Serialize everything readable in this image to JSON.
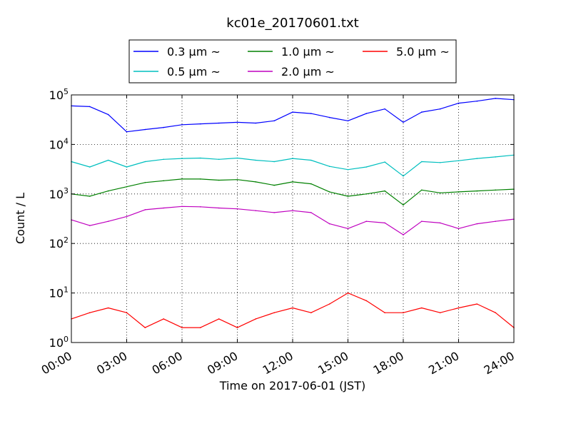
{
  "chart_data": {
    "type": "line",
    "title": "kc01e_20170601.txt",
    "xlabel": "Time on 2017-06-01 (JST)",
    "ylabel": "Count / L",
    "x_unit": "hours since 2017-06-01 00:00 JST",
    "xlim": [
      0,
      24
    ],
    "ylim": [
      1,
      100000
    ],
    "yscale": "log",
    "grid": true,
    "legend_position": "top, above plot",
    "x_ticks": [
      0,
      3,
      6,
      9,
      12,
      15,
      18,
      21,
      24
    ],
    "x_tick_labels": [
      "00:00",
      "03:00",
      "06:00",
      "09:00",
      "12:00",
      "15:00",
      "18:00",
      "21:00",
      "24:00"
    ],
    "y_ticks": [
      1,
      10,
      100,
      1000,
      10000,
      100000
    ],
    "y_tick_labels": [
      {
        "base": "10",
        "exp": "0"
      },
      {
        "base": "10",
        "exp": "1"
      },
      {
        "base": "10",
        "exp": "2"
      },
      {
        "base": "10",
        "exp": "3"
      },
      {
        "base": "10",
        "exp": "4"
      },
      {
        "base": "10",
        "exp": "5"
      }
    ],
    "x": [
      0,
      1,
      2,
      3,
      4,
      5,
      6,
      7,
      8,
      9,
      10,
      11,
      12,
      13,
      14,
      15,
      16,
      17,
      18,
      19,
      20,
      21,
      22,
      23,
      24
    ],
    "series": [
      {
        "name": "0.3 μm ~",
        "color": "#0000ff",
        "values": [
          60000,
          58000,
          40000,
          18000,
          20000,
          22000,
          25000,
          26000,
          27000,
          28000,
          27000,
          30000,
          45000,
          42000,
          35000,
          30000,
          42000,
          52000,
          28000,
          45000,
          52000,
          68000,
          75000,
          85000,
          80000
        ]
      },
      {
        "name": "0.5 μm ~",
        "color": "#00bfbf",
        "values": [
          4500,
          3500,
          4800,
          3500,
          4500,
          5000,
          5200,
          5300,
          5000,
          5300,
          4800,
          4500,
          5200,
          4800,
          3600,
          3100,
          3500,
          4400,
          2300,
          4500,
          4300,
          4700,
          5200,
          5600,
          6100
        ]
      },
      {
        "name": "1.0 μm ~",
        "color": "#008000",
        "values": [
          1000,
          900,
          1150,
          1400,
          1700,
          1850,
          2000,
          2000,
          1900,
          1950,
          1750,
          1500,
          1750,
          1600,
          1100,
          900,
          1000,
          1150,
          600,
          1200,
          1050,
          1100,
          1150,
          1200,
          1250
        ]
      },
      {
        "name": "2.0 μm ~",
        "color": "#bf00bf",
        "values": [
          300,
          230,
          280,
          350,
          480,
          520,
          560,
          550,
          520,
          500,
          460,
          420,
          460,
          420,
          250,
          200,
          280,
          260,
          150,
          280,
          260,
          200,
          250,
          280,
          310
        ]
      },
      {
        "name": "5.0 μm ~",
        "color": "#ff0000",
        "values": [
          3,
          4,
          5,
          4,
          2,
          3,
          2,
          2,
          3,
          2,
          3,
          4,
          5,
          4,
          6,
          10,
          7,
          4,
          4,
          5,
          4,
          5,
          6,
          4,
          2
        ]
      }
    ]
  }
}
